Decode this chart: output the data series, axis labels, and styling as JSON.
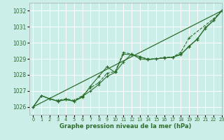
{
  "title": "Graphe pression niveau de la mer (hPa)",
  "bg_color": "#cceee8",
  "grid_color": "#ffffff",
  "line_color": "#2d6e2d",
  "xlim": [
    -0.5,
    23
  ],
  "ylim": [
    1025.5,
    1032.5
  ],
  "yticks": [
    1026,
    1027,
    1028,
    1029,
    1030,
    1031,
    1032
  ],
  "xticks": [
    0,
    1,
    2,
    3,
    4,
    5,
    6,
    7,
    8,
    9,
    10,
    11,
    12,
    13,
    14,
    15,
    16,
    17,
    18,
    19,
    20,
    21,
    22,
    23
  ],
  "series": [
    {
      "x": [
        0,
        1,
        2,
        3,
        4,
        5,
        6,
        7,
        8,
        9,
        10,
        11,
        12,
        13,
        14,
        15,
        16,
        17,
        18,
        19,
        22,
        23
      ],
      "y": [
        1026.0,
        1026.7,
        1026.5,
        1026.4,
        1026.5,
        1026.4,
        1026.7,
        1027.2,
        1027.5,
        1028.1,
        1028.2,
        1029.4,
        1029.3,
        1029.1,
        1029.0,
        1029.0,
        1029.1,
        1029.1,
        1029.4,
        1030.3,
        1031.5,
        1032.0
      ],
      "linestyle": "--",
      "marker": "+"
    },
    {
      "x": [
        0,
        1,
        2,
        3,
        4,
        5,
        6,
        7,
        8,
        9,
        10,
        11,
        12,
        13,
        14,
        15,
        16,
        17,
        18,
        19,
        20,
        21,
        22,
        23
      ],
      "y": [
        1026.0,
        1026.7,
        1026.5,
        1026.35,
        1026.45,
        1026.35,
        1026.6,
        1027.3,
        1027.9,
        1028.5,
        1028.15,
        1028.8,
        1029.3,
        1029.0,
        1028.95,
        1029.0,
        1029.05,
        1029.1,
        1029.25,
        1029.8,
        1030.2,
        1030.95,
        1031.4,
        1032.0
      ],
      "linestyle": "-",
      "marker": "+"
    },
    {
      "x": [
        0,
        1,
        2,
        3,
        4,
        5,
        6,
        7,
        8,
        9,
        10,
        11,
        12,
        13,
        14,
        15,
        16,
        17,
        18,
        19,
        20,
        21,
        22,
        23
      ],
      "y": [
        1026.0,
        1026.7,
        1026.5,
        1026.35,
        1026.45,
        1026.35,
        1026.65,
        1027.0,
        1027.4,
        1027.9,
        1028.15,
        1029.3,
        1029.25,
        1029.15,
        1028.95,
        1029.0,
        1029.05,
        1029.1,
        1029.3,
        1029.75,
        1030.25,
        1030.9,
        1031.4,
        1032.0
      ],
      "linestyle": "-",
      "marker": "+"
    },
    {
      "x": [
        0,
        23
      ],
      "y": [
        1026.0,
        1032.0
      ],
      "linestyle": "-",
      "marker": null
    }
  ]
}
